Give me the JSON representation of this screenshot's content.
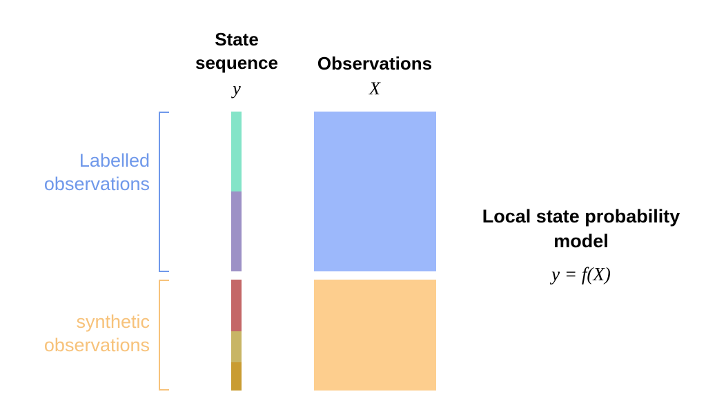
{
  "state_column": {
    "title_line1": "State",
    "title_line2": "sequence",
    "variable": "y"
  },
  "observations_column": {
    "title": "Observations",
    "variable": "X"
  },
  "groups": {
    "labelled": {
      "label_line1": "Labelled",
      "label_line2": "observations",
      "color": "#6f98ea"
    },
    "synthetic": {
      "label_line1": "synthetic",
      "label_line2": "observations",
      "color": "#f7c27a"
    }
  },
  "state_segment_colors": {
    "labelled_1": "#84e4c8",
    "labelled_2": "#9d91c6",
    "synthetic_1": "#c46767",
    "synthetic_2": "#c8b565",
    "synthetic_3": "#c99c32"
  },
  "observation_block_colors": {
    "labelled": "#9cb8fb",
    "synthetic": "#fdce8e"
  },
  "model": {
    "title_line1": "Local state probability",
    "title_line2": "model",
    "equation": "y = f(X)"
  }
}
